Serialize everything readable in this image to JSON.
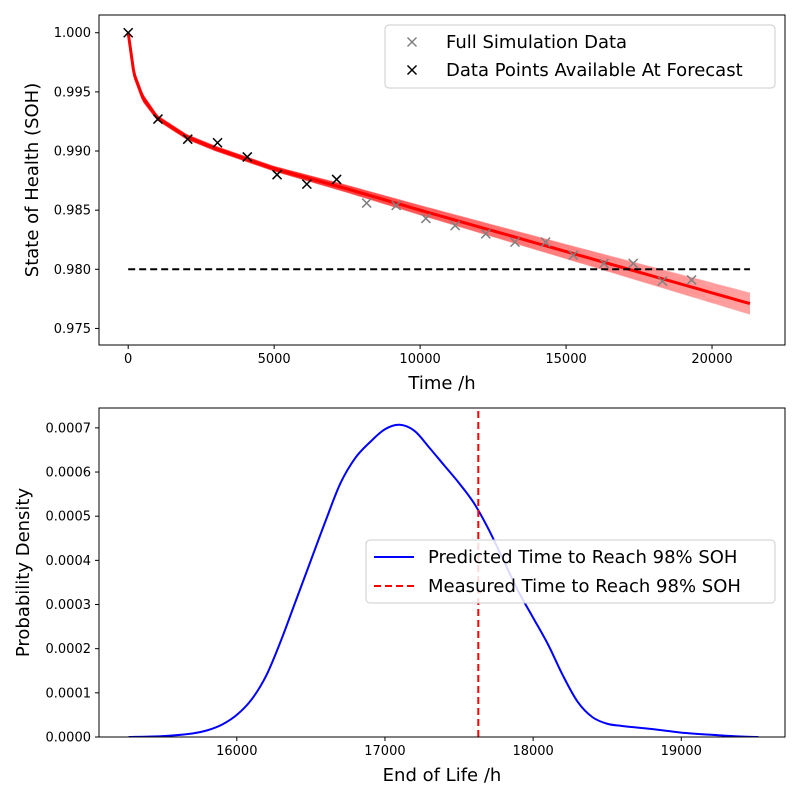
{
  "chart_data": [
    {
      "type": "scatter",
      "xlabel": "Time /h",
      "ylabel": "State of Health (SOH)",
      "xlim": [
        -1000,
        22500
      ],
      "ylim": [
        0.9736,
        1.0015
      ],
      "xticks": [
        0,
        5000,
        10000,
        15000,
        20000
      ],
      "yticks": [
        0.975,
        0.98,
        0.985,
        0.99,
        0.995,
        1.0
      ],
      "xtick_labels": [
        "0",
        "5000",
        "10000",
        "15000",
        "20000"
      ],
      "ytick_labels": [
        "0.975",
        "0.980",
        "0.985",
        "0.990",
        "0.995",
        "1.000"
      ],
      "grid": false,
      "legend_position": "top-right",
      "series": [
        {
          "name": "Full Simulation Data",
          "marker": "x",
          "color": "#808080",
          "x": [
            8170,
            9180,
            10200,
            11200,
            12250,
            13250,
            14300,
            15250,
            16300,
            17300,
            18300,
            19300
          ],
          "y": [
            0.9856,
            0.9854,
            0.9843,
            0.9837,
            0.983,
            0.9823,
            0.9823,
            0.9812,
            0.9805,
            0.9805,
            0.979,
            0.9791
          ]
        },
        {
          "name": "Data Points Available At Forecast",
          "marker": "x",
          "color": "#000000",
          "x": [
            0,
            1020,
            2040,
            3060,
            4080,
            5100,
            6120,
            7140
          ],
          "y": [
            1.0,
            0.9927,
            0.991,
            0.9907,
            0.9895,
            0.988,
            0.9872,
            0.9876
          ]
        },
        {
          "name": "forecast-band",
          "color": "#ff0000",
          "x": [
            0,
            200,
            500,
            1000,
            2000,
            3000,
            5000,
            7500,
            10000,
            15000,
            21300
          ],
          "y_center": [
            1.0,
            0.9965,
            0.9945,
            0.9928,
            0.9912,
            0.9902,
            0.9885,
            0.9868,
            0.985,
            0.9815,
            0.9771
          ],
          "y_half_width": [
            0.0,
            0.0003,
            0.0003,
            0.0002,
            0.0002,
            0.0002,
            0.0002,
            0.0003,
            0.0004,
            0.0006,
            0.0009
          ]
        },
        {
          "name": "threshold",
          "style": "dashed",
          "color": "#000000",
          "x": [
            0,
            21300
          ],
          "y": [
            0.98,
            0.98
          ]
        }
      ]
    },
    {
      "type": "line",
      "xlabel": "End of Life /h",
      "ylabel": "Probability Density",
      "xlim": [
        15070,
        19700
      ],
      "ylim": [
        0,
        0.000745
      ],
      "xticks": [
        16000,
        17000,
        18000,
        19000
      ],
      "yticks": [
        0,
        0.0001,
        0.0002,
        0.0003,
        0.0004,
        0.0005,
        0.0006,
        0.0007
      ],
      "xtick_labels": [
        "16000",
        "17000",
        "18000",
        "19000"
      ],
      "ytick_labels": [
        "0.0000",
        "0.0001",
        "0.0002",
        "0.0003",
        "0.0004",
        "0.0005",
        "0.0006",
        "0.0007"
      ],
      "grid": false,
      "legend_position": "center-right",
      "series": [
        {
          "name": "Predicted Time to Reach 98% SOH",
          "style": "solid",
          "color": "#0000ff",
          "x": [
            15270,
            15500,
            15700,
            15800,
            15900,
            16000,
            16100,
            16200,
            16300,
            16400,
            16500,
            16600,
            16700,
            16800,
            16900,
            17000,
            17100,
            17200,
            17300,
            17400,
            17500,
            17600,
            17700,
            17800,
            17900,
            18000,
            18100,
            18200,
            18300,
            18400,
            18500,
            18600,
            18800,
            19000,
            19200,
            19400,
            19520
          ],
          "y": [
            0,
            2e-06,
            8e-06,
            1.5e-05,
            2.8e-05,
            5e-05,
            8.5e-05,
            0.00014,
            0.00022,
            0.00031,
            0.0004,
            0.00049,
            0.000575,
            0.000632,
            0.000668,
            0.000697,
            0.000707,
            0.000693,
            0.000655,
            0.000615,
            0.000575,
            0.00053,
            0.00047,
            0.0004,
            0.00033,
            0.00027,
            0.00021,
            0.00014,
            8e-05,
            4.5e-05,
            3e-05,
            2.5e-05,
            1.8e-05,
            1e-05,
            5e-06,
            1e-06,
            0
          ]
        },
        {
          "name": "Measured Time to Reach 98% SOH",
          "style": "dashed",
          "color": "#ff0000",
          "x": [
            17630,
            17630
          ],
          "y": [
            0,
            0.000745
          ]
        }
      ]
    }
  ]
}
